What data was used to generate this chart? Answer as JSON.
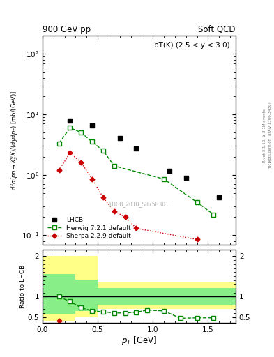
{
  "title_top": "900 GeV pp",
  "title_right": "Soft QCD",
  "annotation": "pT(K) (2.5 < y < 3.0)",
  "watermark": "LHCB_2010_S8758301",
  "right_label1": "Rivet 3.1.10, ≥ 2.1M events",
  "right_label2": "mcplots.cern.ch [arXiv:1306.3436]",
  "ylabel_main": "$d^2\\sigma(pp{\\rightarrow}K^0_S X) / (dydp_T)$ [mb/(GeV)]",
  "ylabel_ratio": "Ratio to LHCB",
  "xlabel": "$p_T$ [GeV]",
  "lhcb_x": [
    0.25,
    0.45,
    0.7,
    0.85,
    1.15,
    1.3,
    1.6
  ],
  "lhcb_y": [
    7.8,
    6.5,
    4.0,
    2.7,
    1.15,
    0.9,
    0.42
  ],
  "herwig_x": [
    0.15,
    0.25,
    0.35,
    0.45,
    0.55,
    0.65,
    1.1,
    1.4,
    1.55
  ],
  "herwig_y": [
    3.3,
    6.0,
    5.0,
    3.5,
    2.5,
    1.4,
    0.85,
    0.35,
    0.22
  ],
  "sherpa_x": [
    0.15,
    0.25,
    0.35,
    0.45,
    0.55,
    0.65,
    0.75,
    0.85,
    1.4
  ],
  "sherpa_y": [
    1.2,
    2.3,
    1.6,
    0.85,
    0.42,
    0.25,
    0.2,
    0.13,
    0.085
  ],
  "herwig_ratio_x": [
    0.15,
    0.25,
    0.35,
    0.45,
    0.55,
    0.65,
    0.75,
    0.85,
    0.95,
    1.1,
    1.25,
    1.4,
    1.55
  ],
  "herwig_ratio_y": [
    1.0,
    0.88,
    0.73,
    0.65,
    0.63,
    0.6,
    0.6,
    0.62,
    0.67,
    0.65,
    0.47,
    0.48,
    0.48
  ],
  "sherpa_ratio_x": [
    0.15
  ],
  "sherpa_ratio_y": [
    0.41
  ],
  "color_lhcb": "#000000",
  "color_herwig": "#008800",
  "color_sherpa": "#cc0000",
  "color_yellow": "#ffff88",
  "color_green": "#88ee88",
  "ylim_main": [
    0.07,
    200
  ],
  "xlim": [
    0.0,
    1.75
  ],
  "ylim_ratio": [
    0.35,
    2.15
  ]
}
